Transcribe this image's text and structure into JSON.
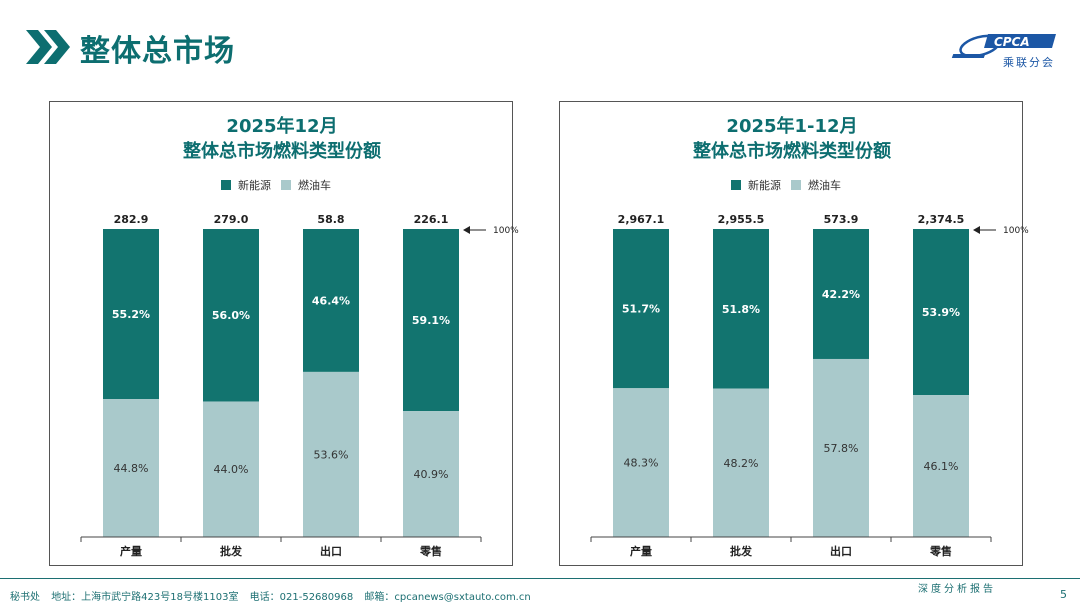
{
  "header": {
    "title": "整体总市场",
    "logo_text": "CPCA",
    "logo_sub": "乘联分会"
  },
  "colors": {
    "nev": "#12746f",
    "ice": "#a9c9cb",
    "accent": "#0d6e70",
    "logo": "#1c57a5"
  },
  "chart_data": [
    {
      "type": "bar",
      "stacked": "percent",
      "title": "2025年12月",
      "subtitle": "整体总市场燃料类型份额",
      "categories": [
        "产量",
        "批发",
        "出口",
        "零售"
      ],
      "totals": [
        "282.9",
        "279.0",
        "58.8",
        "226.1"
      ],
      "series": [
        {
          "name": "新能源",
          "values": [
            55.2,
            56.0,
            46.4,
            59.1
          ],
          "labels": [
            "55.2%",
            "56.0%",
            "46.4%",
            "59.1%"
          ]
        },
        {
          "name": "燃油车",
          "values": [
            44.8,
            44.0,
            53.6,
            40.9
          ],
          "labels": [
            "44.8%",
            "44.0%",
            "53.6%",
            "40.9%"
          ]
        }
      ],
      "annotation": "100%",
      "ylim": [
        0,
        100
      ],
      "legend": "top"
    },
    {
      "type": "bar",
      "stacked": "percent",
      "title": "2025年1-12月",
      "subtitle": "整体总市场燃料类型份额",
      "categories": [
        "产量",
        "批发",
        "出口",
        "零售"
      ],
      "totals": [
        "2,967.1",
        "2,955.5",
        "573.9",
        "2,374.5"
      ],
      "series": [
        {
          "name": "新能源",
          "values": [
            51.7,
            51.8,
            42.2,
            53.9
          ],
          "labels": [
            "51.7%",
            "51.8%",
            "42.2%",
            "53.9%"
          ]
        },
        {
          "name": "燃油车",
          "values": [
            48.3,
            48.2,
            57.8,
            46.1
          ],
          "labels": [
            "48.3%",
            "48.2%",
            "57.8%",
            "46.1%"
          ]
        }
      ],
      "annotation": "100%",
      "ylim": [
        0,
        100
      ],
      "legend": "top"
    }
  ],
  "footer": {
    "org": "秘书处",
    "address": "地址：上海市武宁路423号18号楼1103室",
    "phone": "电话：021-52680968",
    "email": "邮箱：cpcanews@sxtauto.com.cn",
    "report_tag": "深度分析报告",
    "page_number": "5"
  }
}
